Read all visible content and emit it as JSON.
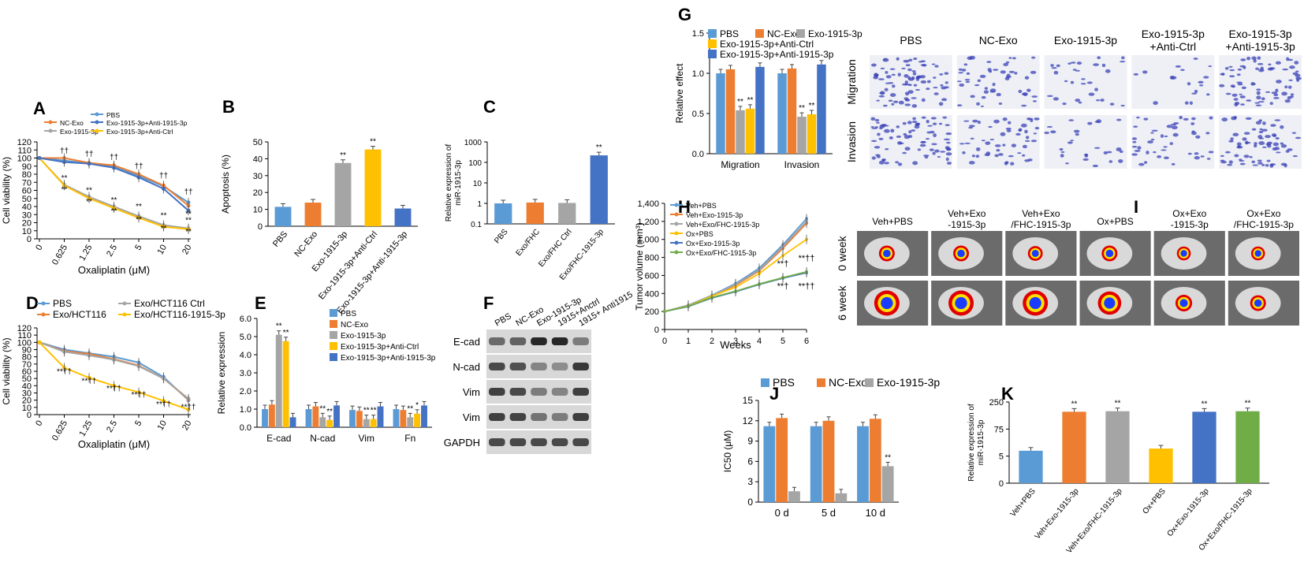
{
  "colors": {
    "PBS": "#5b9bd5",
    "NC": "#ed7d31",
    "Exo": "#a5a5a5",
    "AntiCtrl": "#ffc000",
    "Anti1915": "#4472c4",
    "Green": "#70ad47"
  },
  "chart_data": [
    {
      "panel": "A",
      "type": "line",
      "x_categories": [
        "0",
        "0.625",
        "1.25",
        "2.5",
        "5",
        "10",
        "20"
      ],
      "xlabel": "Oxaliplatin (μM)",
      "ylabel": "Cell viability (%)",
      "ylim": [
        0,
        120
      ],
      "yticks": [
        0,
        10,
        20,
        30,
        40,
        50,
        60,
        70,
        80,
        90,
        100,
        110,
        120
      ],
      "series": [
        {
          "name": "PBS",
          "color": "PBS",
          "values": [
            100,
            97,
            93,
            90,
            78,
            65,
            45
          ]
        },
        {
          "name": "NC-Exo",
          "color": "NC",
          "values": [
            100,
            100,
            94,
            91,
            80,
            66,
            41
          ]
        },
        {
          "name": "Exo-1915-3p",
          "color": "Exo",
          "values": [
            100,
            67,
            52,
            40,
            28,
            17,
            13
          ]
        },
        {
          "name": "Exo-1915-3p+Anti-Ctrl",
          "color": "AntiCtrl",
          "values": [
            100,
            66,
            50,
            38,
            26,
            15,
            12
          ]
        },
        {
          "name": "Exo-1915-3p+Anti-1915-3p",
          "color": "Anti1915",
          "values": [
            100,
            95,
            93,
            88,
            76,
            62,
            35
          ]
        }
      ],
      "annotations": [
        {
          "x": 1,
          "y": 106,
          "text": "††"
        },
        {
          "x": 2,
          "y": 102,
          "text": "††"
        },
        {
          "x": 3,
          "y": 98,
          "text": "††"
        },
        {
          "x": 4,
          "y": 87,
          "text": "††"
        },
        {
          "x": 5,
          "y": 75,
          "text": "††"
        },
        {
          "x": 6,
          "y": 55,
          "text": "††"
        },
        {
          "x": 1,
          "y": 72,
          "text": "**"
        },
        {
          "x": 1,
          "y": 58,
          "text": "**"
        },
        {
          "x": 2,
          "y": 57,
          "text": "**"
        },
        {
          "x": 2,
          "y": 43,
          "text": "**"
        },
        {
          "x": 3,
          "y": 45,
          "text": "**"
        },
        {
          "x": 3,
          "y": 31,
          "text": "**"
        },
        {
          "x": 4,
          "y": 37,
          "text": "**"
        },
        {
          "x": 4,
          "y": 21,
          "text": "**"
        },
        {
          "x": 5,
          "y": 26,
          "text": "**"
        },
        {
          "x": 5,
          "y": 10,
          "text": "**"
        },
        {
          "x": 6,
          "y": 28,
          "text": "**"
        },
        {
          "x": 6,
          "y": 20,
          "text": "**"
        },
        {
          "x": 6,
          "y": 6,
          "text": "**"
        }
      ]
    },
    {
      "panel": "B",
      "type": "bar",
      "ylabel": "Apoptosis (%)",
      "ylim": [
        0,
        50
      ],
      "yticks": [
        0,
        10,
        20,
        30,
        40,
        50
      ],
      "categories": [
        "PBS",
        "NC-Exo",
        "Exo-1915-3p",
        "Exo-1915-3p+Anti-Ctrl",
        "Exo-1915-3p+Anti-1915-3p"
      ],
      "colors": [
        "PBS",
        "NC",
        "Exo",
        "AntiCtrl",
        "Anti1915"
      ],
      "values": [
        11.5,
        14,
        37.5,
        45.5,
        10.5
      ],
      "labels": [
        "",
        "",
        "**",
        "**",
        ""
      ]
    },
    {
      "panel": "C",
      "type": "bar",
      "log": true,
      "ylabel": "Relative expression of miR-1915-3p",
      "ylim": [
        0.1,
        1000
      ],
      "yticks": [
        0.1,
        1,
        10,
        100,
        1000
      ],
      "yticklabels": [
        "0.1",
        "1",
        "10",
        "100",
        "1000"
      ],
      "categories": [
        "PBS",
        "Exo/FHC",
        "Exo/FHC Ctrl",
        "Exo/FHC-1915-3p"
      ],
      "colors": [
        "PBS",
        "NC",
        "Exo",
        "Anti1915"
      ],
      "values": [
        1,
        1.1,
        1.05,
        220
      ],
      "labels": [
        "",
        "",
        "",
        "**"
      ]
    },
    {
      "panel": "D",
      "type": "line",
      "x_categories": [
        "0",
        "0.625",
        "1.25",
        "2.5",
        "5",
        "10",
        "20"
      ],
      "xlabel": "Oxaliplatin (μM)",
      "ylabel": "Cell viability (%)",
      "ylim": [
        0,
        120
      ],
      "yticks": [
        0,
        10,
        20,
        30,
        40,
        50,
        60,
        70,
        80,
        90,
        100,
        110,
        120
      ],
      "series": [
        {
          "name": "PBS",
          "color": "PBS",
          "values": [
            100,
            90,
            85,
            80,
            72,
            52,
            20
          ]
        },
        {
          "name": "Exo/HCT116",
          "color": "NC",
          "values": [
            100,
            88,
            84,
            77,
            68,
            50,
            21
          ]
        },
        {
          "name": "Exo/HCT116 Ctrl",
          "color": "Exo",
          "values": [
            100,
            87,
            82,
            76,
            67,
            50,
            22
          ]
        },
        {
          "name": "Exo/HCT116-1915-3p",
          "color": "AntiCtrl",
          "values": [
            100,
            65,
            51,
            40,
            31,
            19,
            7
          ]
        }
      ],
      "annotations": [
        {
          "x": 1,
          "y": 56,
          "text": "**††"
        },
        {
          "x": 2,
          "y": 43,
          "text": "**††"
        },
        {
          "x": 3,
          "y": 33,
          "text": "**††"
        },
        {
          "x": 4,
          "y": 24,
          "text": "**††"
        },
        {
          "x": 5,
          "y": 11,
          "text": "**††"
        },
        {
          "x": 6,
          "y": 7,
          "text": "**††"
        }
      ]
    },
    {
      "panel": "E",
      "type": "grouped-bar",
      "ylabel": "Relative expression",
      "ylim": [
        0,
        6
      ],
      "yticks": [
        0,
        1,
        2,
        3,
        4,
        5,
        6
      ],
      "yticklabels": [
        "0.0",
        "1.0",
        "2.0",
        "3.0",
        "4.0",
        "5.0",
        "6.0"
      ],
      "categories": [
        "E-cad",
        "N-cad",
        "Vim",
        "Fn"
      ],
      "series": [
        {
          "name": "PBS",
          "color": "PBS",
          "values": [
            1,
            1,
            0.95,
            1
          ]
        },
        {
          "name": "NC-Exo",
          "color": "NC",
          "values": [
            1.25,
            1.15,
            0.9,
            0.95
          ]
        },
        {
          "name": "Exo-1915-3p",
          "color": "Exo",
          "values": [
            5.1,
            0.55,
            0.45,
            0.55
          ]
        },
        {
          "name": "Exo-1915-3p+Anti-Ctrl",
          "color": "AntiCtrl",
          "values": [
            4.75,
            0.4,
            0.45,
            0.75
          ]
        },
        {
          "name": "Exo-1915-3p+Anti-1915-3p",
          "color": "Anti1915",
          "values": [
            0.55,
            1.2,
            1.15,
            1.2
          ]
        }
      ],
      "labels": [
        {
          "cat": 0,
          "series": 2,
          "text": "**"
        },
        {
          "cat": 0,
          "series": 3,
          "text": "**"
        },
        {
          "cat": 1,
          "series": 2,
          "text": "**"
        },
        {
          "cat": 1,
          "series": 3,
          "text": "**"
        },
        {
          "cat": 2,
          "series": 2,
          "text": "**"
        },
        {
          "cat": 2,
          "series": 3,
          "text": "**"
        },
        {
          "cat": 3,
          "series": 2,
          "text": "**"
        },
        {
          "cat": 3,
          "series": 3,
          "text": "*"
        }
      ]
    },
    {
      "panel": "G",
      "type": "grouped-bar",
      "ylabel": "Relative effect",
      "ylim": [
        0,
        1.5
      ],
      "yticks": [
        0,
        0.5,
        1,
        1.5
      ],
      "yticklabels": [
        "0.0",
        "0.5",
        "1.0",
        "1.5"
      ],
      "categories": [
        "Migration",
        "Invasion"
      ],
      "series": [
        {
          "name": "PBS",
          "color": "PBS",
          "values": [
            1.0,
            1.0
          ]
        },
        {
          "name": "NC-Exo",
          "color": "NC",
          "values": [
            1.05,
            1.06
          ]
        },
        {
          "name": "Exo-1915-3p",
          "color": "Exo",
          "values": [
            0.54,
            0.46
          ]
        },
        {
          "name": "Exo-1915-3p+Anti-Ctrl",
          "color": "AntiCtrl",
          "values": [
            0.56,
            0.49
          ]
        },
        {
          "name": "Exo-1915-3p+Anti-1915-3p",
          "color": "Anti1915",
          "values": [
            1.08,
            1.11
          ]
        }
      ],
      "labels": [
        {
          "cat": 0,
          "series": 2,
          "text": "**"
        },
        {
          "cat": 0,
          "series": 3,
          "text": "**"
        },
        {
          "cat": 1,
          "series": 2,
          "text": "**"
        },
        {
          "cat": 1,
          "series": 3,
          "text": "**"
        }
      ]
    },
    {
      "panel": "H",
      "type": "line",
      "x": [
        0,
        1,
        2,
        3,
        4,
        5,
        6
      ],
      "xlabel": "Weeks",
      "ylabel": "Tumor volume (mm³)",
      "ylim": [
        0,
        1400
      ],
      "yticks": [
        0,
        200,
        400,
        600,
        800,
        1000,
        1200,
        1400
      ],
      "yticklabels": [
        "0",
        "200",
        "400",
        "600",
        "800",
        "1,000",
        "1,200",
        "1,400"
      ],
      "series": [
        {
          "name": "Veh+PBS",
          "color": "PBS",
          "values": [
            200,
            270,
            380,
            510,
            680,
            940,
            1230
          ]
        },
        {
          "name": "Veh+Exo-1915-3p",
          "color": "NC",
          "values": [
            200,
            265,
            370,
            490,
            650,
            900,
            1180
          ]
        },
        {
          "name": "Veh+Exo/FHC-1915-3p",
          "color": "Exo",
          "values": [
            200,
            268,
            375,
            500,
            660,
            920,
            1200
          ]
        },
        {
          "name": "Ox+PBS",
          "color": "AntiCtrl",
          "values": [
            200,
            260,
            370,
            470,
            620,
            820,
            1000
          ]
        },
        {
          "name": "Ox+Exo-1915-3p",
          "color": "Anti1915",
          "values": [
            200,
            255,
            350,
            420,
            500,
            570,
            630
          ]
        },
        {
          "name": "Ox+Exo/FHC-1915-3p",
          "color": "Green",
          "values": [
            200,
            258,
            355,
            425,
            505,
            575,
            640
          ]
        }
      ],
      "annotations": [
        {
          "x": 5,
          "y": 700,
          "text": "**†"
        },
        {
          "x": 5,
          "y": 450,
          "text": "**†"
        },
        {
          "x": 6,
          "y": 760,
          "text": "**††"
        },
        {
          "x": 6,
          "y": 450,
          "text": "**††"
        }
      ]
    },
    {
      "panel": "J",
      "type": "grouped-bar",
      "ylabel": "IC50 (μM)",
      "ylim": [
        0,
        15
      ],
      "yticks": [
        0,
        3,
        6,
        9,
        12,
        15
      ],
      "categories": [
        "0 d",
        "5 d",
        "10 d"
      ],
      "series": [
        {
          "name": "PBS",
          "color": "PBS",
          "values": [
            11.2,
            11.2,
            11.2
          ]
        },
        {
          "name": "NC-Exo",
          "color": "NC",
          "values": [
            12.4,
            12.0,
            12.3
          ]
        },
        {
          "name": "Exo-1915-3p",
          "color": "Exo",
          "values": [
            1.6,
            1.3,
            5.3
          ]
        }
      ],
      "labels": [
        {
          "cat": 2,
          "series": 2,
          "text": "**"
        }
      ]
    },
    {
      "panel": "K",
      "type": "bar",
      "ylabel": "Relative expression of miR-1915-3p",
      "ylim": [
        0,
        3
      ],
      "yticks": [
        0,
        1,
        2,
        3
      ],
      "yticklabels": [
        "0",
        "5",
        "75",
        "250"
      ],
      "categories": [
        "Veh+PBS",
        "Veh+Exo-1915-3p",
        "Veh+Exo/FHC-1915-3p",
        "Ox+PBS",
        "Ox+Exo-1915-3p",
        "Ox+Exo/FHC-1915-3p"
      ],
      "colors": [
        "PBS",
        "NC",
        "Exo",
        "AntiCtrl",
        "Anti1915",
        "Green"
      ],
      "values": [
        1.2,
        2.64,
        2.66,
        1.28,
        2.64,
        2.66
      ],
      "labels": [
        "",
        "**",
        "**",
        "",
        "**",
        "**"
      ]
    }
  ],
  "panel_letters": {
    "A": "A",
    "B": "B",
    "C": "C",
    "D": "D",
    "E": "E",
    "F": "F",
    "G": "G",
    "H": "H",
    "I": "I",
    "J": "J",
    "K": "K"
  },
  "blot": {
    "lanes": [
      "PBS",
      "NC-Exo",
      "Exo-1915-3p",
      "1915+Anctrl",
      "1915+ Anti1915"
    ],
    "rows": [
      {
        "label": "E-cad",
        "intensity": [
          0.55,
          0.6,
          0.95,
          0.95,
          0.45
        ]
      },
      {
        "label": "N-cad",
        "intensity": [
          0.75,
          0.7,
          0.4,
          0.35,
          0.85
        ]
      },
      {
        "label": "Vim",
        "intensity": [
          0.8,
          0.75,
          0.45,
          0.4,
          0.8
        ]
      },
      {
        "label": "Vim",
        "intensity": [
          0.8,
          0.78,
          0.5,
          0.45,
          0.82
        ]
      },
      {
        "label": "GAPDH",
        "intensity": [
          0.75,
          0.75,
          0.75,
          0.75,
          0.75
        ]
      }
    ]
  },
  "migration_images": {
    "columns": [
      "PBS",
      "NC-Exo",
      "Exo-1915-3p",
      "Exo-1915-3p +Anti-Ctrl",
      "Exo-1915-3p +Anti-1915-3p"
    ],
    "rows": [
      "Migration",
      "Invasion"
    ],
    "density": [
      [
        0.9,
        0.55,
        0.35,
        0.2,
        0.8
      ],
      [
        0.9,
        0.6,
        0.3,
        0.5,
        0.8
      ]
    ]
  },
  "imaging": {
    "columns": [
      "Veh+PBS",
      "Veh+Exo -1915-3p",
      "Veh+Exo /FHC-1915-3p",
      "Ox+PBS",
      "Ox+Exo -1915-3p",
      "Ox+Exo /FHC-1915-3p"
    ],
    "rows": [
      "0 week",
      "6 week"
    ],
    "signal": [
      [
        0.5,
        0.5,
        0.45,
        0.5,
        0.4,
        0.4
      ],
      [
        1.0,
        1.0,
        1.0,
        0.9,
        0.55,
        0.5
      ]
    ]
  }
}
